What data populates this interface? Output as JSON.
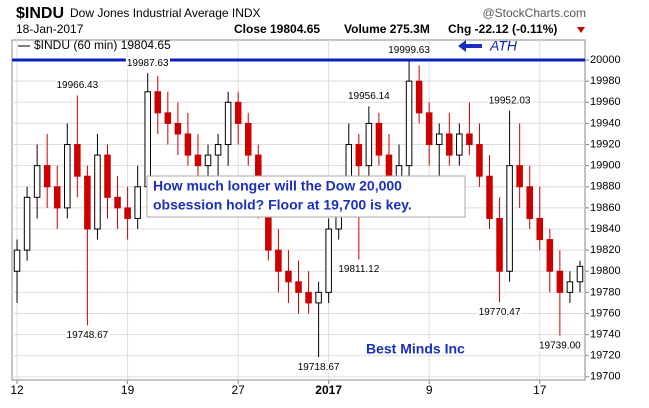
{
  "chart_data": {
    "type": "candlestick",
    "symbol": "$INDU",
    "name": "Dow Jones Industrial Average INDX",
    "source": "@StockCharts.com",
    "date": "18-Jan-2017",
    "close_text": "Close 19804.65",
    "volume_text": "Volume 275.3M",
    "change_text": "Chg -22.12 (-0.11%)",
    "legend": "$INDU (60 min) 19804.65",
    "up_color": "#000000",
    "down_color": "#cc0000",
    "candles": [
      {
        "open": 19800,
        "high": 19830,
        "low": 19770,
        "close": 19820
      },
      {
        "open": 19820,
        "high": 19880,
        "low": 19810,
        "close": 19870
      },
      {
        "open": 19870,
        "high": 19920,
        "low": 19850,
        "close": 19900
      },
      {
        "open": 19900,
        "high": 19930,
        "low": 19860,
        "close": 19880
      },
      {
        "open": 19880,
        "high": 19900,
        "low": 19840,
        "close": 19860
      },
      {
        "open": 19860,
        "high": 19940,
        "low": 19850,
        "close": 19920
      },
      {
        "open": 19920,
        "high": 19966.43,
        "low": 19870,
        "close": 19890
      },
      {
        "open": 19890,
        "high": 19900,
        "low": 19748.67,
        "close": 19840
      },
      {
        "open": 19840,
        "high": 19930,
        "low": 19830,
        "close": 19910
      },
      {
        "open": 19910,
        "high": 19920,
        "low": 19850,
        "close": 19870
      },
      {
        "open": 19870,
        "high": 19890,
        "low": 19840,
        "close": 19860
      },
      {
        "open": 19860,
        "high": 19880,
        "low": 19830,
        "close": 19850
      },
      {
        "open": 19850,
        "high": 19900,
        "low": 19840,
        "close": 19880
      },
      {
        "open": 19880,
        "high": 19987.63,
        "low": 19870,
        "close": 19970
      },
      {
        "open": 19970,
        "high": 19985,
        "low": 19930,
        "close": 19950
      },
      {
        "open": 19950,
        "high": 19970,
        "low": 19920,
        "close": 19940
      },
      {
        "open": 19940,
        "high": 19960,
        "low": 19910,
        "close": 19930
      },
      {
        "open": 19930,
        "high": 19950,
        "low": 19900,
        "close": 19910
      },
      {
        "open": 19910,
        "high": 19930,
        "low": 19880,
        "close": 19900
      },
      {
        "open": 19900,
        "high": 19920,
        "low": 19880,
        "close": 19910
      },
      {
        "open": 19910,
        "high": 19930,
        "low": 19890,
        "close": 19920
      },
      {
        "open": 19920,
        "high": 19970,
        "low": 19900,
        "close": 19960
      },
      {
        "open": 19960,
        "high": 19970,
        "low": 19920,
        "close": 19940
      },
      {
        "open": 19940,
        "high": 19950,
        "low": 19900,
        "close": 19910
      },
      {
        "open": 19910,
        "high": 19920,
        "low": 19850,
        "close": 19860
      },
      {
        "open": 19860,
        "high": 19870,
        "low": 19810,
        "close": 19820
      },
      {
        "open": 19820,
        "high": 19840,
        "low": 19780,
        "close": 19800
      },
      {
        "open": 19800,
        "high": 19820,
        "low": 19770,
        "close": 19790
      },
      {
        "open": 19790,
        "high": 19810,
        "low": 19760,
        "close": 19780
      },
      {
        "open": 19780,
        "high": 19800,
        "low": 19760,
        "close": 19770
      },
      {
        "open": 19770,
        "high": 19790,
        "low": 19718.67,
        "close": 19780
      },
      {
        "open": 19780,
        "high": 19850,
        "low": 19770,
        "close": 19840
      },
      {
        "open": 19840,
        "high": 19880,
        "low": 19830,
        "close": 19870
      },
      {
        "open": 19870,
        "high": 19940,
        "low": 19860,
        "close": 19920
      },
      {
        "open": 19920,
        "high": 19930,
        "low": 19811.12,
        "close": 19900
      },
      {
        "open": 19900,
        "high": 19956.14,
        "low": 19890,
        "close": 19940
      },
      {
        "open": 19940,
        "high": 19950,
        "low": 19900,
        "close": 19910
      },
      {
        "open": 19910,
        "high": 19930,
        "low": 19870,
        "close": 19890
      },
      {
        "open": 19890,
        "high": 19920,
        "low": 19870,
        "close": 19900
      },
      {
        "open": 19900,
        "high": 19999.63,
        "low": 19890,
        "close": 19980
      },
      {
        "open": 19980,
        "high": 19995,
        "low": 19940,
        "close": 19950
      },
      {
        "open": 19950,
        "high": 19960,
        "low": 19900,
        "close": 19920
      },
      {
        "open": 19920,
        "high": 19940,
        "low": 19890,
        "close": 19930
      },
      {
        "open": 19930,
        "high": 19950,
        "low": 19900,
        "close": 19910
      },
      {
        "open": 19910,
        "high": 19940,
        "low": 19900,
        "close": 19930
      },
      {
        "open": 19930,
        "high": 19960,
        "low": 19910,
        "close": 19920
      },
      {
        "open": 19920,
        "high": 19940,
        "low": 19880,
        "close": 19890
      },
      {
        "open": 19890,
        "high": 19910,
        "low": 19840,
        "close": 19850
      },
      {
        "open": 19850,
        "high": 19870,
        "low": 19770.47,
        "close": 19800
      },
      {
        "open": 19800,
        "high": 19952.03,
        "low": 19790,
        "close": 19900
      },
      {
        "open": 19900,
        "high": 19940,
        "low": 19860,
        "close": 19880
      },
      {
        "open": 19880,
        "high": 19900,
        "low": 19840,
        "close": 19850
      },
      {
        "open": 19850,
        "high": 19880,
        "low": 19820,
        "close": 19830
      },
      {
        "open": 19830,
        "high": 19840,
        "low": 19780,
        "close": 19800
      },
      {
        "open": 19800,
        "high": 19820,
        "low": 19739,
        "close": 19780
      },
      {
        "open": 19780,
        "high": 19800,
        "low": 19770,
        "close": 19790
      },
      {
        "open": 19790,
        "high": 19810,
        "low": 19780,
        "close": 19804.65
      }
    ],
    "xlim": [
      -0.5,
      56.5
    ],
    "xticks": [
      {
        "value": 0,
        "label": "12"
      },
      {
        "value": 11,
        "label": "19"
      },
      {
        "value": 22,
        "label": "27"
      },
      {
        "value": 31,
        "label": "2017"
      },
      {
        "value": 41,
        "label": "9"
      },
      {
        "value": 52,
        "label": "17"
      }
    ],
    "ylim": [
      19697,
      20019
    ],
    "yticks": [
      19700,
      19720,
      19740,
      19760,
      19780,
      19800,
      19820,
      19840,
      19860,
      19880,
      19900,
      19920,
      19940,
      19960,
      19980,
      20000
    ],
    "grid": true,
    "annotations": [
      {
        "x": 6,
        "y": 19966.43,
        "label": "19966.43"
      },
      {
        "x": 7,
        "y": 19748.67,
        "label": "19748.67"
      },
      {
        "x": 13,
        "y": 19987.63,
        "label": "19987.63"
      },
      {
        "x": 30,
        "y": 19718.67,
        "label": "19718.67"
      },
      {
        "x": 34,
        "y": 19811.12,
        "label": "19811.12"
      },
      {
        "x": 35,
        "y": 19956.14,
        "label": "19956.14"
      },
      {
        "x": 39,
        "y": 19999.63,
        "label": "19999.63"
      },
      {
        "x": 48,
        "y": 19770.47,
        "label": "19770.47"
      },
      {
        "x": 49,
        "y": 19952.03,
        "label": "19952.03"
      },
      {
        "x": 54,
        "y": 19739,
        "label": "19739.00"
      }
    ],
    "hline": {
      "value": 20000,
      "label": "ATH",
      "color": "#0a1fbf"
    },
    "callout": [
      "How much longer will the Dow 20,000",
      "obsession hold? Floor at  19,700 is key."
    ],
    "watermark": "Best Minds Inc"
  }
}
